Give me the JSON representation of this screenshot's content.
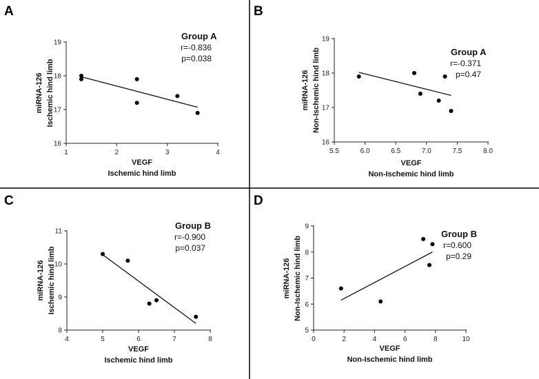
{
  "chart_data": [
    {
      "type": "scatter",
      "panel": "A",
      "group": "Group A",
      "stat_r": "r=-0.836",
      "stat_p": "p=0.038",
      "xlabel": "VEGF",
      "xlabel2": "Ischemic hind limb",
      "ylabel": "miRNA-126",
      "ylabel2": "Ischemic hind limb",
      "xlim": [
        1,
        4
      ],
      "ylim": [
        16,
        19
      ],
      "xticks": [
        1,
        2,
        3,
        4
      ],
      "yticks": [
        16,
        17,
        18,
        19
      ],
      "xtick_labels": [
        "1",
        "2",
        "3",
        "4"
      ],
      "ytick_labels": [
        "16",
        "17",
        "18",
        "19"
      ],
      "points": [
        {
          "x": 1.3,
          "y": 18.0
        },
        {
          "x": 1.3,
          "y": 17.9
        },
        {
          "x": 2.4,
          "y": 17.9
        },
        {
          "x": 2.4,
          "y": 17.2
        },
        {
          "x": 3.2,
          "y": 17.4
        },
        {
          "x": 3.6,
          "y": 16.9
        }
      ],
      "fit": [
        [
          1.3,
          17.97
        ],
        [
          3.6,
          17.07
        ]
      ]
    },
    {
      "type": "scatter",
      "panel": "B",
      "group": "Group A",
      "stat_r": "r=-0.371",
      "stat_p": "p=0.47",
      "xlabel": "VEGF",
      "xlabel2": "Non-Ischemic hind limb",
      "ylabel": "miRNA-126",
      "ylabel2": "Non-Ischemic hind limb",
      "xlim": [
        5.5,
        8.0
      ],
      "ylim": [
        16,
        19
      ],
      "xticks": [
        5.5,
        6.0,
        6.5,
        7.0,
        7.5,
        8.0
      ],
      "yticks": [
        16,
        17,
        18,
        19
      ],
      "xtick_labels": [
        "5.5",
        "6.0",
        "6.5",
        "7.0",
        "7.5",
        "8.0"
      ],
      "ytick_labels": [
        "16",
        "17",
        "18",
        "19"
      ],
      "points": [
        {
          "x": 5.9,
          "y": 17.9
        },
        {
          "x": 6.8,
          "y": 18.0
        },
        {
          "x": 6.9,
          "y": 17.4
        },
        {
          "x": 7.2,
          "y": 17.2
        },
        {
          "x": 7.3,
          "y": 17.9
        },
        {
          "x": 7.4,
          "y": 16.9
        }
      ],
      "fit": [
        [
          5.9,
          18.02
        ],
        [
          7.4,
          17.35
        ]
      ]
    },
    {
      "type": "scatter",
      "panel": "C",
      "group": "Group B",
      "stat_r": "r=-0.900",
      "stat_p": "p=0.037",
      "xlabel": "VEGF",
      "xlabel2": "Ischemic hind limb",
      "ylabel": "miRNA-126",
      "ylabel2": "Ischemic hind limb",
      "xlim": [
        4,
        8
      ],
      "ylim": [
        8,
        11
      ],
      "xticks": [
        4,
        5,
        6,
        7,
        8
      ],
      "yticks": [
        8,
        9,
        10,
        11
      ],
      "xtick_labels": [
        "4",
        "5",
        "6",
        "7",
        "8"
      ],
      "ytick_labels": [
        "8",
        "9",
        "10",
        "11"
      ],
      "points": [
        {
          "x": 5.0,
          "y": 10.3
        },
        {
          "x": 5.7,
          "y": 10.1
        },
        {
          "x": 6.3,
          "y": 8.8
        },
        {
          "x": 6.5,
          "y": 8.9
        },
        {
          "x": 7.6,
          "y": 8.4
        }
      ],
      "fit": [
        [
          5.0,
          10.28
        ],
        [
          7.6,
          8.2
        ]
      ]
    },
    {
      "type": "scatter",
      "panel": "D",
      "group": "Group B",
      "stat_r": "r=0.600",
      "stat_p": "p=0.29",
      "xlabel": "VEGF",
      "xlabel2": "Non-Ischemic hind limb",
      "ylabel": "miRNA-126",
      "ylabel2": "Non-Ischemic hind limb",
      "xlim": [
        0,
        10
      ],
      "ylim": [
        5,
        9
      ],
      "xticks": [
        0,
        2,
        4,
        6,
        8,
        10
      ],
      "yticks": [
        5,
        6,
        7,
        8,
        9
      ],
      "xtick_labels": [
        "0",
        "2",
        "4",
        "6",
        "8",
        "10"
      ],
      "ytick_labels": [
        "5",
        "6",
        "7",
        "8",
        "9"
      ],
      "points": [
        {
          "x": 1.8,
          "y": 6.6
        },
        {
          "x": 4.4,
          "y": 6.1
        },
        {
          "x": 7.2,
          "y": 8.5
        },
        {
          "x": 7.6,
          "y": 7.5
        },
        {
          "x": 7.8,
          "y": 8.3
        }
      ],
      "fit": [
        [
          1.8,
          6.15
        ],
        [
          7.8,
          8.0
        ]
      ]
    }
  ]
}
